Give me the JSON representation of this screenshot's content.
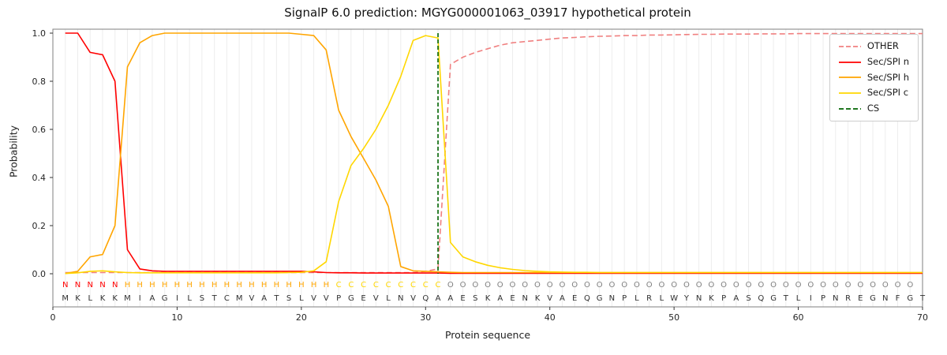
{
  "chart_data": {
    "type": "line",
    "title": "SignalP 6.0 prediction: MGYG000001063_03917 hypothetical protein",
    "xlabel": "Protein sequence",
    "ylabel": "Probability",
    "xlim": [
      0,
      70
    ],
    "ylim": [
      0,
      1
    ],
    "x_ticks": [
      0,
      10,
      20,
      30,
      40,
      50,
      60,
      70
    ],
    "y_ticks": [
      0,
      0.2,
      0.4,
      0.6,
      0.8,
      1.0
    ],
    "grid": "vertical-per-residue",
    "legend_position": "upper right",
    "sequence": "MKLKKMIAGILSTCMVATSLVVPGEVLNVQAAESKAENKVAEQGNPLRLWYNKPASQGTLIPNREGNFGT",
    "region_labels": "NNNNNHHHHHHHHHHHHHHHHHCCCCCCCCCOOOOOOOOOOOOOOOOOOOOOOOOOOOOOOOOOOOOOO",
    "region_colors": {
      "N": "#ff0000",
      "H": "#ffa500",
      "C": "#ffd700",
      "O": "#808080"
    },
    "sequence_color": "#303030",
    "cs": {
      "name": "CS",
      "position": 31,
      "color": "#006400",
      "dash": true
    },
    "series": [
      {
        "name": "OTHER",
        "color": "#f08080",
        "dash": true,
        "values": [
          0.005,
          0.005,
          0.005,
          0.005,
          0.005,
          0.005,
          0.005,
          0.005,
          0.005,
          0.005,
          0.005,
          0.005,
          0.005,
          0.005,
          0.005,
          0.005,
          0.005,
          0.005,
          0.005,
          0.005,
          0.005,
          0.005,
          0.005,
          0.005,
          0.005,
          0.005,
          0.005,
          0.005,
          0.005,
          0.01,
          0.02,
          0.87,
          0.9,
          0.92,
          0.935,
          0.95,
          0.96,
          0.965,
          0.97,
          0.975,
          0.98,
          0.982,
          0.985,
          0.987,
          0.988,
          0.99,
          0.99,
          0.992,
          0.992,
          0.993,
          0.994,
          0.995,
          0.995,
          0.996,
          0.996,
          0.996,
          0.997,
          0.997,
          0.997,
          0.998,
          0.998,
          0.998,
          0.998,
          0.998,
          0.998,
          0.998,
          0.998,
          0.998,
          0.998,
          0.998
        ]
      },
      {
        "name": "Sec/SPI n",
        "color": "#ff0000",
        "dash": false,
        "values": [
          1.0,
          1.0,
          0.92,
          0.91,
          0.8,
          0.1,
          0.02,
          0.012,
          0.01,
          0.01,
          0.01,
          0.01,
          0.01,
          0.01,
          0.01,
          0.01,
          0.01,
          0.01,
          0.01,
          0.01,
          0.008,
          0.005,
          0.004,
          0.004,
          0.003,
          0.003,
          0.003,
          0.003,
          0.003,
          0.003,
          0.003,
          0.002,
          0.002,
          0.002,
          0.002,
          0.002,
          0.002,
          0.002,
          0.002,
          0.002,
          0.002,
          0.002,
          0.002,
          0.002,
          0.002,
          0.002,
          0.002,
          0.002,
          0.002,
          0.002,
          0.002,
          0.002,
          0.002,
          0.002,
          0.002,
          0.002,
          0.002,
          0.002,
          0.002,
          0.002,
          0.002,
          0.002,
          0.002,
          0.002,
          0.002,
          0.002,
          0.002,
          0.002,
          0.002,
          0.002
        ]
      },
      {
        "name": "Sec/SPI h",
        "color": "#ffa500",
        "dash": false,
        "values": [
          0.001,
          0.01,
          0.07,
          0.08,
          0.2,
          0.86,
          0.96,
          0.99,
          1.0,
          1.0,
          1.0,
          1.0,
          1.0,
          1.0,
          1.0,
          1.0,
          1.0,
          1.0,
          1.0,
          0.995,
          0.99,
          0.93,
          0.68,
          0.57,
          0.48,
          0.39,
          0.28,
          0.03,
          0.012,
          0.01,
          0.008,
          0.006,
          0.005,
          0.005,
          0.005,
          0.005,
          0.005,
          0.005,
          0.005,
          0.005,
          0.005,
          0.005,
          0.005,
          0.005,
          0.005,
          0.005,
          0.005,
          0.005,
          0.005,
          0.005,
          0.005,
          0.005,
          0.005,
          0.005,
          0.005,
          0.005,
          0.005,
          0.005,
          0.005,
          0.005,
          0.005,
          0.005,
          0.005,
          0.005,
          0.005,
          0.005,
          0.005,
          0.005,
          0.005,
          0.005
        ]
      },
      {
        "name": "Sec/SPI c",
        "color": "#ffd700",
        "dash": false,
        "values": [
          0.001,
          0.004,
          0.01,
          0.012,
          0.008,
          0.005,
          0.004,
          0.004,
          0.004,
          0.004,
          0.004,
          0.004,
          0.004,
          0.004,
          0.004,
          0.004,
          0.004,
          0.004,
          0.005,
          0.006,
          0.012,
          0.05,
          0.3,
          0.45,
          0.52,
          0.6,
          0.7,
          0.82,
          0.97,
          0.99,
          0.98,
          0.13,
          0.07,
          0.05,
          0.035,
          0.025,
          0.018,
          0.013,
          0.01,
          0.008,
          0.007,
          0.006,
          0.006,
          0.005,
          0.005,
          0.005,
          0.005,
          0.005,
          0.005,
          0.005,
          0.005,
          0.005,
          0.005,
          0.005,
          0.005,
          0.005,
          0.005,
          0.005,
          0.005,
          0.005,
          0.005,
          0.005,
          0.005,
          0.005,
          0.005,
          0.005,
          0.005,
          0.005,
          0.005,
          0.005
        ]
      }
    ]
  }
}
